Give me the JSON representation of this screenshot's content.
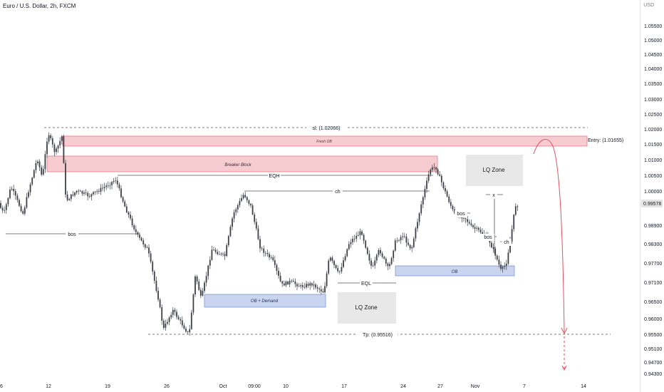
{
  "header": {
    "title": "Euro / U.S. Dollar, 2h, FXCM",
    "currency": "USD"
  },
  "chart_data": {
    "type": "candlestick",
    "y_axis": {
      "ticks": [
        "1.05500",
        "1.05000",
        "1.04500",
        "1.04000",
        "1.03500",
        "1.03000",
        "1.02500",
        "1.02000",
        "1.01500",
        "1.01000",
        "1.00500",
        "1.00000",
        "0.98900",
        "0.98300",
        "0.97700",
        "0.97100",
        "0.96500",
        "0.96000",
        "0.95500",
        "0.95100",
        "0.94700",
        "0.94300"
      ],
      "current_price": "0.99578",
      "entry_price": "1.01655",
      "sl_price": "1.02066",
      "tp_price": "0.95516"
    },
    "x_axis": {
      "ticks": [
        "6",
        "12",
        "19",
        "26",
        "Oct",
        "09:00",
        "10",
        "17",
        "24",
        "27",
        "Nov",
        "7",
        "14"
      ]
    },
    "annotations": {
      "sl": "sl: (1.02066)",
      "tp": "Tp: (0.95516)",
      "entry": "Entry: (1.01655)",
      "fresh_ob": "Fresh OB",
      "breaker_block": "Breaker Block",
      "eqh": "EQH",
      "ch": "ch",
      "bos": "bos",
      "eql": "EQL",
      "ob_demand": "OB + Demand",
      "ob": "OB",
      "lq_zone": "LQ Zone",
      "x_mark": "x"
    },
    "colors": {
      "candle": "#3d4048",
      "supply_fill": "#f7ccd1",
      "supply_border": "#e57a86",
      "demand_fill": "#c9d5ef",
      "demand_border": "#7d96d6",
      "lq_fill": "#e8e8e8",
      "projection": "#e05062",
      "level_line": "#505050",
      "price_badge": "#e4e4e4"
    }
  }
}
